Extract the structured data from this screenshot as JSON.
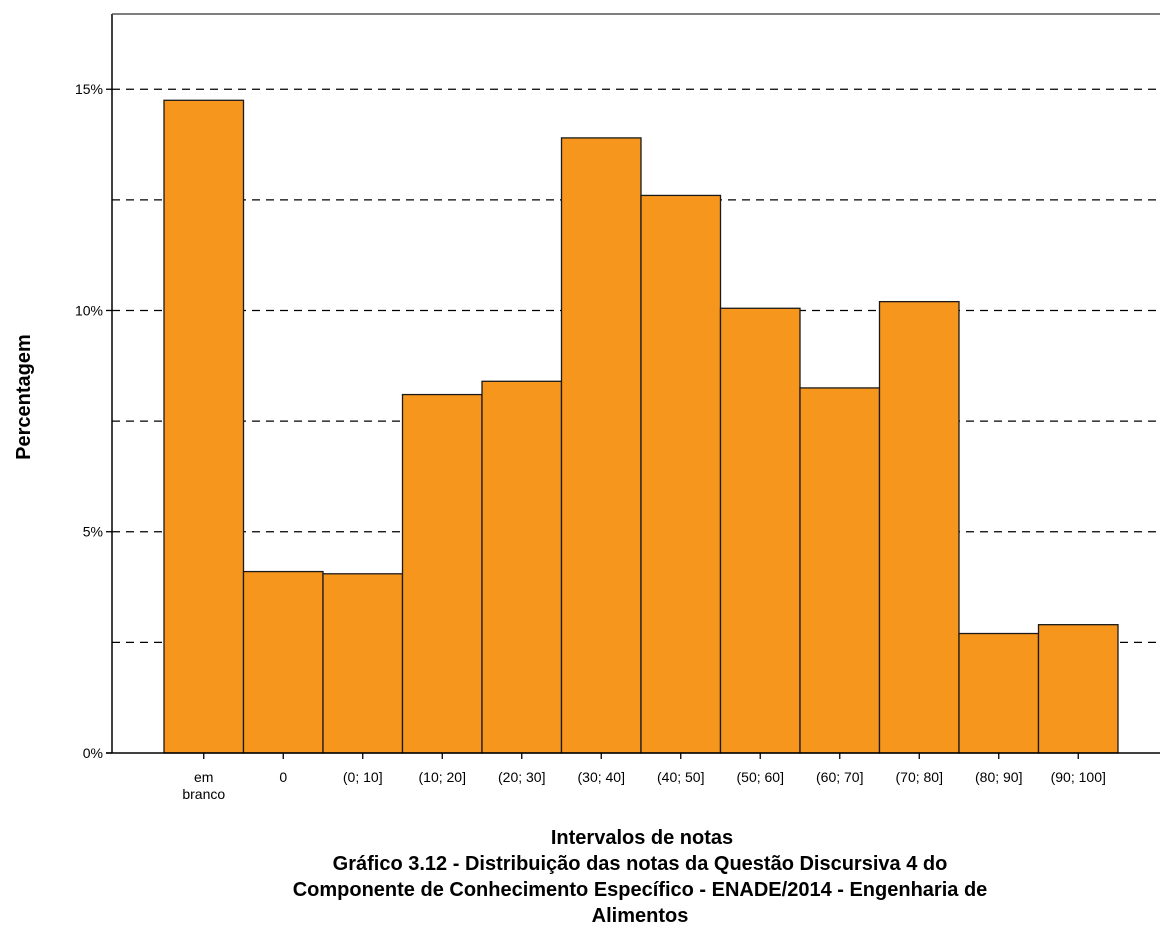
{
  "chart_data": {
    "type": "bar",
    "categories": [
      "em branco",
      "0",
      "(0; 10]",
      "(10; 20]",
      "(20; 30]",
      "(30; 40]",
      "(40; 50]",
      "(50; 60]",
      "(60; 70]",
      "(70; 80]",
      "(80; 90]",
      "(90; 100]"
    ],
    "category_lines": [
      [
        "em",
        "branco"
      ],
      [
        "0"
      ],
      [
        "(0; 10]"
      ],
      [
        "(10; 20]"
      ],
      [
        "(20; 30]"
      ],
      [
        "(30; 40]"
      ],
      [
        "(40; 50]"
      ],
      [
        "(50; 60]"
      ],
      [
        "(60; 70]"
      ],
      [
        "(70; 80]"
      ],
      [
        "(80; 90]"
      ],
      [
        "(90; 100]"
      ]
    ],
    "values": [
      14.75,
      4.1,
      4.05,
      8.1,
      8.4,
      13.9,
      12.6,
      10.05,
      8.25,
      10.2,
      2.7,
      2.9
    ],
    "ylim": [
      0,
      16.7
    ],
    "yticks": [
      {
        "value": 0,
        "label": "0%"
      },
      {
        "value": 5,
        "label": "5%"
      },
      {
        "value": 10,
        "label": "10%"
      },
      {
        "value": 15,
        "label": "15%"
      }
    ],
    "gridlines": [
      2.5,
      5,
      7.5,
      10,
      12.5,
      15
    ],
    "grid": true,
    "xlabel": "Intervalos de notas",
    "ylabel": "Percentagem",
    "caption_lines": [
      "Gráfico 3.12 - Distribuição das notas da Questão Discursiva 4 do",
      "Componente de Conhecimento Específico - ENADE/2014 - Engenharia de",
      "Alimentos"
    ],
    "bar_color": "#f7961d",
    "bar_stroke": "#1a1a1a"
  }
}
